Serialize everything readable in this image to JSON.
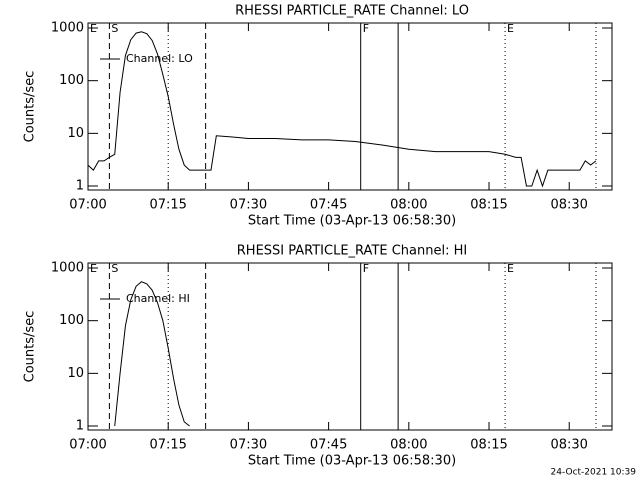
{
  "chart_data": [
    {
      "type": "line",
      "title": "RHESSI PARTICLE_RATE Channel: LO",
      "xlabel": "Start Time (03-Apr-13 06:58:30)",
      "ylabel": "Counts/sec",
      "x": [
        "07:00",
        "07:01",
        "07:02",
        "07:03",
        "07:04",
        "07:05",
        "07:06",
        "07:07",
        "07:08",
        "07:09",
        "07:10",
        "07:11",
        "07:12",
        "07:13",
        "07:14",
        "07:15",
        "07:16",
        "07:17",
        "07:18",
        "07:19",
        "07:20",
        "07:21",
        "07:22",
        "07:23",
        "07:24",
        "07:27",
        "07:30",
        "07:35",
        "07:40",
        "07:45",
        "07:50",
        "07:55",
        "08:00",
        "08:05",
        "08:10",
        "08:15",
        "08:18",
        "08:20",
        "08:21",
        "08:22",
        "08:23",
        "08:24",
        "08:25",
        "08:26",
        "08:30",
        "08:32",
        "08:33",
        "08:34",
        "08:35"
      ],
      "series": [
        {
          "name": "Channel: LO",
          "color": "#000000",
          "values": [
            2.5,
            2,
            3,
            3,
            3.5,
            4,
            60,
            300,
            600,
            800,
            850,
            780,
            580,
            320,
            130,
            50,
            15,
            5,
            2.5,
            2,
            2,
            2,
            2,
            2,
            9,
            8.5,
            8,
            8,
            7.5,
            7.5,
            7,
            6,
            5,
            4.5,
            4.5,
            4.5,
            4,
            3.5,
            3.5,
            1,
            1,
            2,
            1,
            2,
            2,
            2,
            3,
            2.5,
            3
          ]
        }
      ],
      "xlim": [
        "07:00",
        "08:38"
      ],
      "xticks": [
        "07:00",
        "07:15",
        "07:30",
        "07:45",
        "08:00",
        "08:15",
        "08:30"
      ],
      "ylim": [
        0.84,
        1245
      ],
      "yticks": [
        1,
        10,
        100,
        1000
      ],
      "log_y": true,
      "markers": [
        {
          "x": "07:04",
          "style": "dashed"
        },
        {
          "x": "07:15",
          "style": "dotted"
        },
        {
          "x": "07:22",
          "style": "dashed"
        },
        {
          "x": "07:51",
          "style": "solid"
        },
        {
          "x": "07:58",
          "style": "solid"
        },
        {
          "x": "08:18",
          "style": "dotted"
        },
        {
          "x": "08:35",
          "style": "dotted"
        }
      ],
      "marker_labels": [
        {
          "x": "07:00",
          "label": "E"
        },
        {
          "x": "07:04",
          "label": "S"
        },
        {
          "x": "07:51",
          "label": "F"
        },
        {
          "x": "08:18",
          "label": "E"
        }
      ]
    },
    {
      "type": "line",
      "title": "RHESSI PARTICLE_RATE Channel: HI",
      "xlabel": "Start Time (03-Apr-13 06:58:30)",
      "ylabel": "Counts/sec",
      "x": [
        "07:05",
        "07:06",
        "07:07",
        "07:08",
        "07:09",
        "07:10",
        "07:11",
        "07:12",
        "07:13",
        "07:14",
        "07:15",
        "07:16",
        "07:17",
        "07:18",
        "07:19"
      ],
      "series": [
        {
          "name": "Channel: HI",
          "color": "#000000",
          "values": [
            1,
            10,
            80,
            250,
            450,
            550,
            500,
            380,
            220,
            100,
            30,
            8,
            2.5,
            1.2,
            1
          ]
        }
      ],
      "xlim": [
        "07:00",
        "08:38"
      ],
      "xticks": [
        "07:00",
        "07:15",
        "07:30",
        "07:45",
        "08:00",
        "08:15",
        "08:30"
      ],
      "ylim": [
        0.84,
        1245
      ],
      "yticks": [
        1,
        10,
        100,
        1000
      ],
      "log_y": true,
      "markers": [
        {
          "x": "07:04",
          "style": "dashed"
        },
        {
          "x": "07:15",
          "style": "dotted"
        },
        {
          "x": "07:22",
          "style": "dashed"
        },
        {
          "x": "07:51",
          "style": "solid"
        },
        {
          "x": "07:58",
          "style": "solid"
        },
        {
          "x": "08:18",
          "style": "dotted"
        },
        {
          "x": "08:35",
          "style": "dotted"
        }
      ],
      "marker_labels": [
        {
          "x": "07:00",
          "label": "E"
        },
        {
          "x": "07:04",
          "label": "S"
        },
        {
          "x": "07:51",
          "label": "F"
        },
        {
          "x": "08:18",
          "label": "E"
        }
      ]
    }
  ],
  "timestamp": "24-Oct-2021 10:39"
}
